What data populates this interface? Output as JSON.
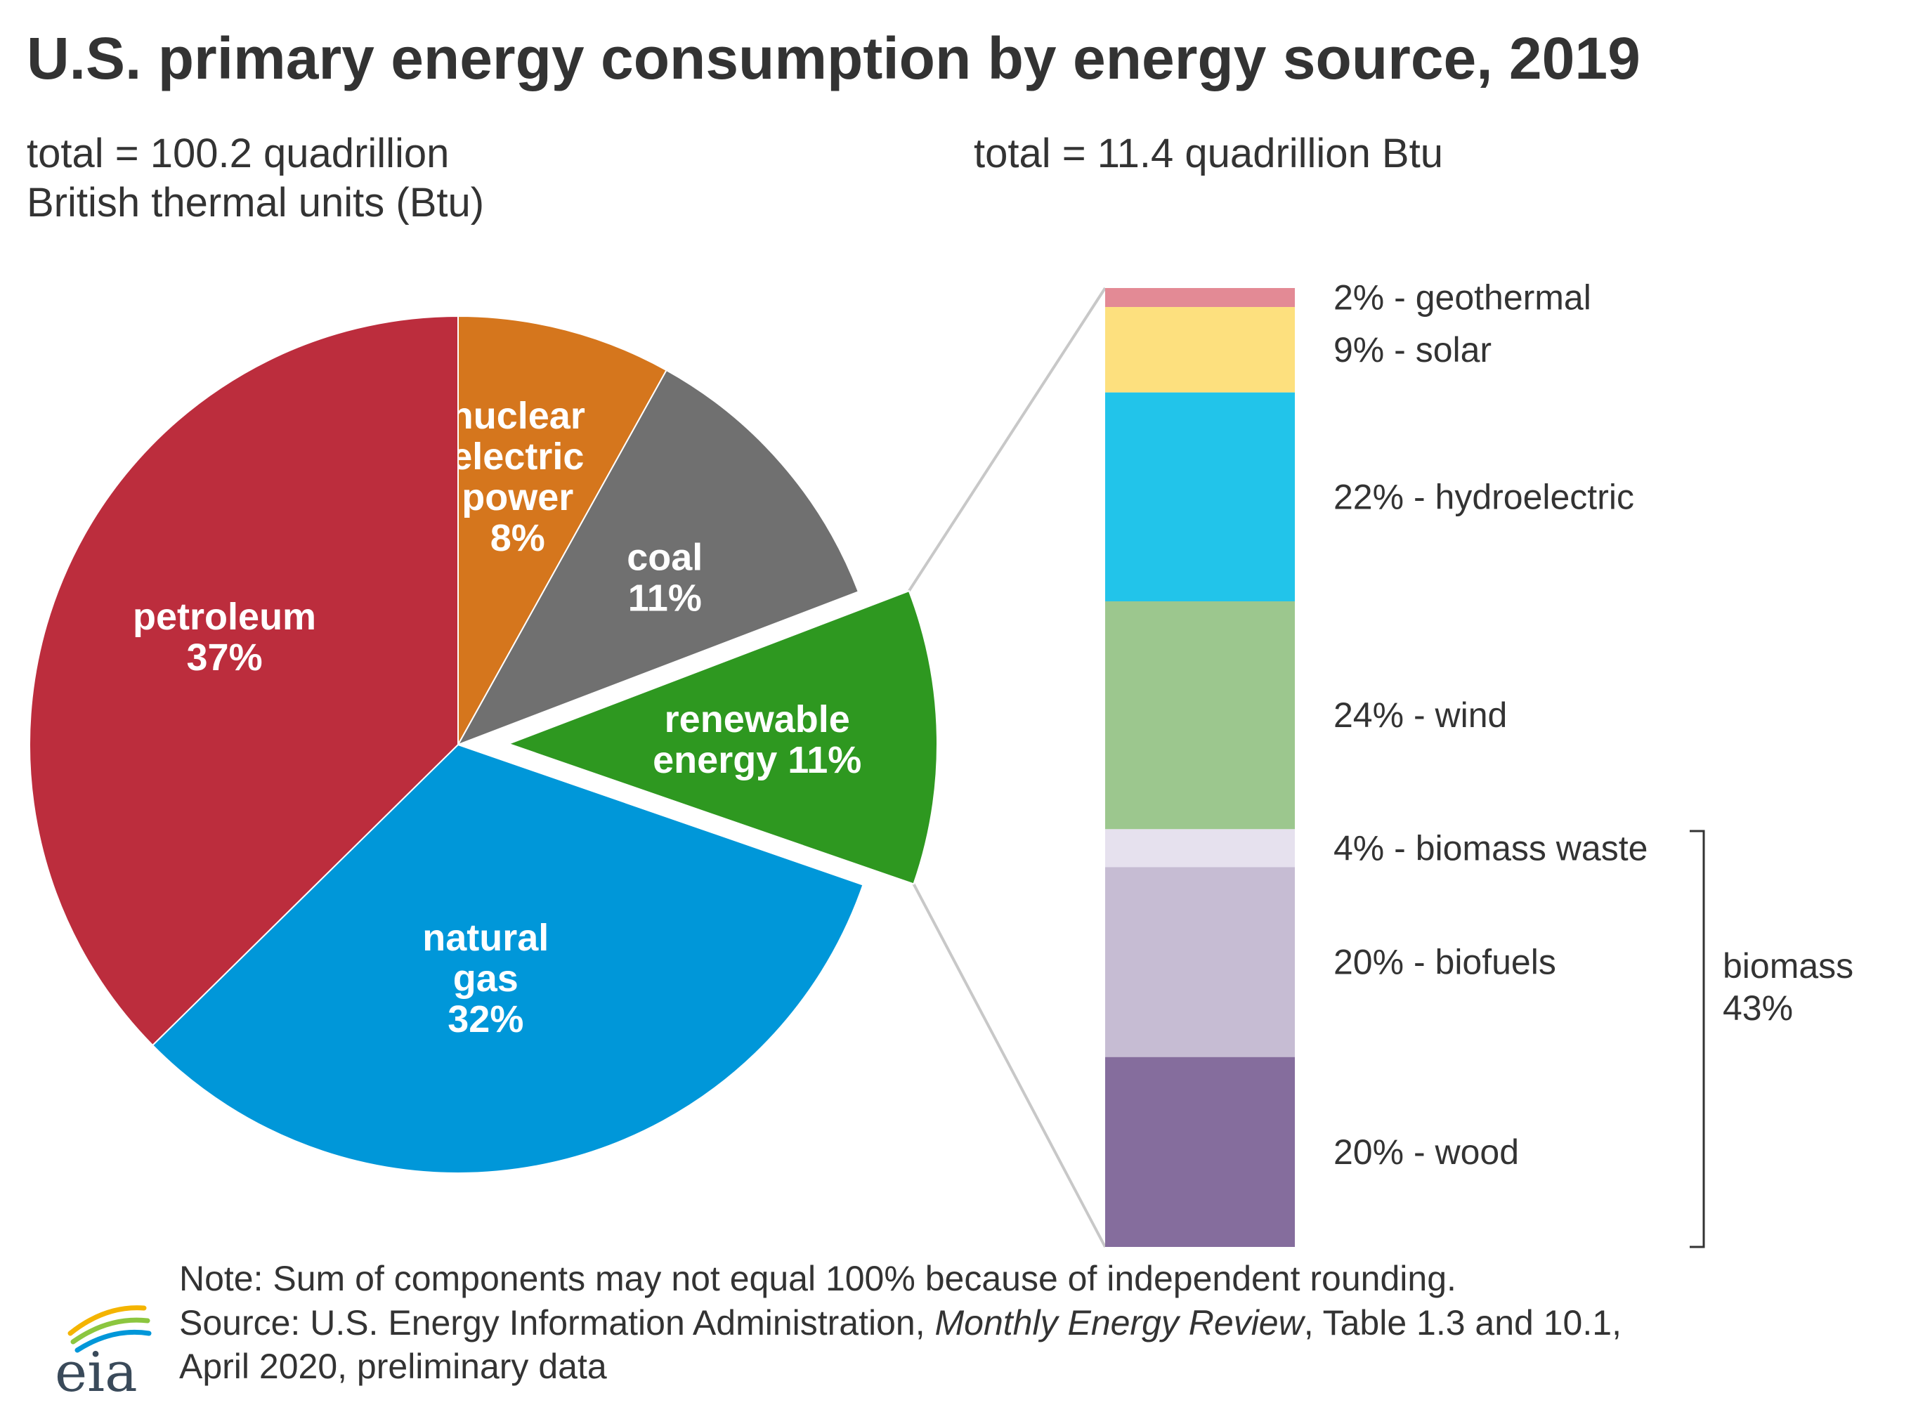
{
  "chart_data": [
    {
      "type": "pie",
      "title": "U.S. primary energy consumption by energy source, 2019",
      "subtitle": [
        "total = 100.2 quadrillion",
        "British thermal units (Btu)"
      ],
      "units": "percent",
      "slices": [
        {
          "name": "nuclear electric power",
          "value": 8,
          "label_lines": [
            "nuclear",
            "electric",
            "power",
            "8%"
          ],
          "color": "#d5761d",
          "exploded": false
        },
        {
          "name": "coal",
          "value": 11,
          "label_lines": [
            "coal",
            "11%"
          ],
          "color": "#707070",
          "exploded": false
        },
        {
          "name": "renewable energy",
          "value": 11,
          "label_lines": [
            "renewable",
            "energy 11%"
          ],
          "color": "#2e9820",
          "exploded": true
        },
        {
          "name": "natural gas",
          "value": 32,
          "label_lines": [
            "natural",
            "gas",
            "32%"
          ],
          "color": "#0097d9",
          "exploded": false
        },
        {
          "name": "petroleum",
          "value": 37,
          "label_lines": [
            "petroleum",
            "37%"
          ],
          "color": "#bc2d3d",
          "exploded": false
        }
      ]
    },
    {
      "type": "bar",
      "orientation": "stacked-vertical",
      "title": "renewable energy",
      "subtitle": "total = 11.4 quadrillion Btu",
      "units": "percent",
      "segments": [
        {
          "name": "geothermal",
          "value": 2,
          "label": "2% - geothermal",
          "color": "#e38a95"
        },
        {
          "name": "solar",
          "value": 9,
          "label": "9% - solar",
          "color": "#fde07e"
        },
        {
          "name": "hydroelectric",
          "value": 22,
          "label": "22% - hydroelectric",
          "color": "#22c4ea"
        },
        {
          "name": "wind",
          "value": 24,
          "label": "24% - wind",
          "color": "#9cc78e"
        },
        {
          "name": "biomass waste",
          "value": 4,
          "label": "4% - biomass waste",
          "color": "#e6e1ee"
        },
        {
          "name": "biofuels",
          "value": 20,
          "label": "20% - biofuels",
          "color": "#c6bcd3"
        },
        {
          "name": "wood",
          "value": 20,
          "label": "20% - wood",
          "color": "#856d9d"
        }
      ],
      "group": {
        "name": "biomass",
        "value": 43,
        "label_lines": [
          "biomass",
          "43%"
        ],
        "members": [
          "biomass waste",
          "biofuels",
          "wood"
        ]
      }
    }
  ],
  "note": "Note: Sum of components may not equal 100% because of independent rounding.",
  "source": {
    "prefix": "Source: U.S. Energy Information Administration, ",
    "italic": "Monthly Energy Review",
    "suffix": ", Table 1.3 and 10.1,",
    "line2": "April 2020, preliminary data"
  },
  "logo": {
    "text": "eia"
  },
  "colors": {
    "text": "#333333",
    "connector": "#c8c8c8",
    "bracket": "#333333"
  }
}
